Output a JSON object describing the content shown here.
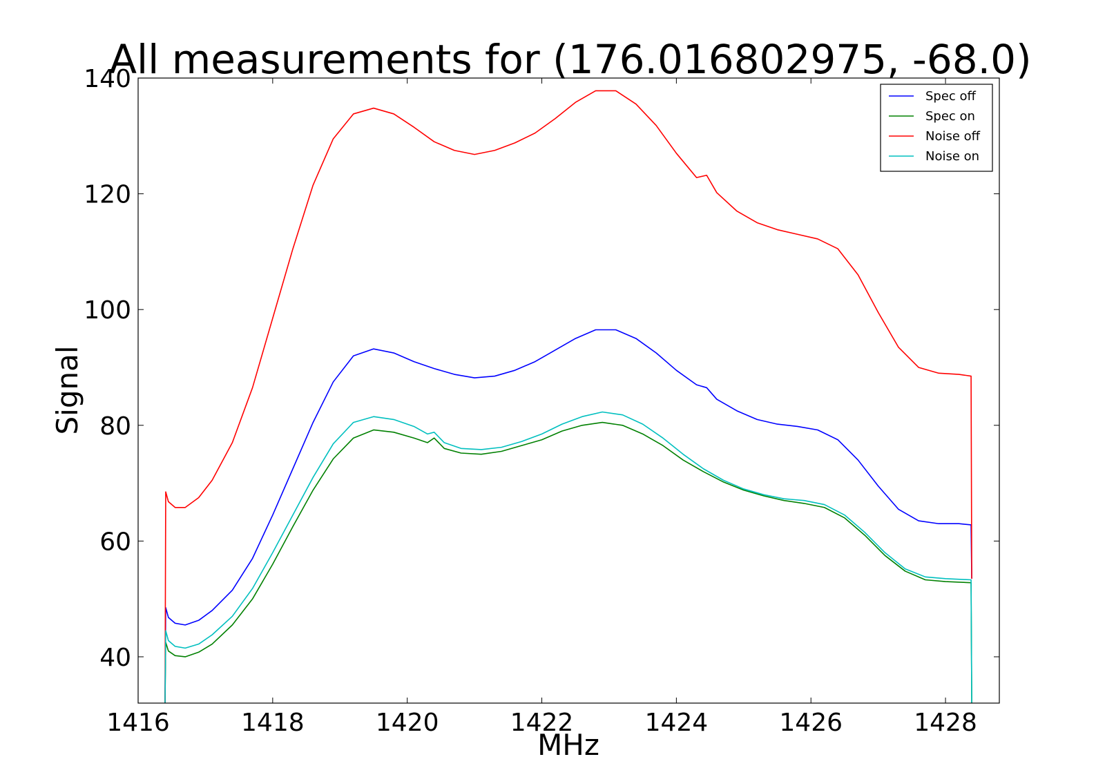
{
  "chart_data": {
    "type": "line",
    "title": "All measurements for (176.016802975, -68.0)",
    "xlabel": "MHz",
    "ylabel": "Signal",
    "xlim": [
      1416.0,
      1428.8
    ],
    "ylim": [
      32,
      140
    ],
    "xticks": [
      1416,
      1418,
      1420,
      1422,
      1424,
      1426,
      1428
    ],
    "yticks": [
      40,
      60,
      80,
      100,
      120,
      140
    ],
    "grid": false,
    "legend_position": "top-right",
    "series": [
      {
        "name": "Spec off",
        "color": "#0000ff",
        "points": [
          [
            1416.4,
            32
          ],
          [
            1416.41,
            48.5
          ],
          [
            1416.45,
            46.8
          ],
          [
            1416.55,
            45.8
          ],
          [
            1416.7,
            45.5
          ],
          [
            1416.9,
            46.3
          ],
          [
            1417.1,
            48.0
          ],
          [
            1417.4,
            51.5
          ],
          [
            1417.7,
            57.0
          ],
          [
            1418.0,
            64.5
          ],
          [
            1418.3,
            72.5
          ],
          [
            1418.6,
            80.5
          ],
          [
            1418.9,
            87.5
          ],
          [
            1419.2,
            92.0
          ],
          [
            1419.5,
            93.2
          ],
          [
            1419.8,
            92.5
          ],
          [
            1420.1,
            91.0
          ],
          [
            1420.4,
            89.8
          ],
          [
            1420.7,
            88.8
          ],
          [
            1421.0,
            88.2
          ],
          [
            1421.3,
            88.5
          ],
          [
            1421.6,
            89.5
          ],
          [
            1421.9,
            91.0
          ],
          [
            1422.2,
            93.0
          ],
          [
            1422.5,
            95.0
          ],
          [
            1422.8,
            96.5
          ],
          [
            1423.1,
            96.5
          ],
          [
            1423.4,
            95.0
          ],
          [
            1423.7,
            92.5
          ],
          [
            1424.0,
            89.5
          ],
          [
            1424.3,
            87.0
          ],
          [
            1424.45,
            86.5
          ],
          [
            1424.6,
            84.5
          ],
          [
            1424.9,
            82.5
          ],
          [
            1425.2,
            81.0
          ],
          [
            1425.5,
            80.2
          ],
          [
            1425.8,
            79.8
          ],
          [
            1426.1,
            79.2
          ],
          [
            1426.4,
            77.5
          ],
          [
            1426.7,
            74.0
          ],
          [
            1427.0,
            69.5
          ],
          [
            1427.3,
            65.5
          ],
          [
            1427.6,
            63.5
          ],
          [
            1427.9,
            63.0
          ],
          [
            1428.2,
            63.0
          ],
          [
            1428.38,
            62.8
          ],
          [
            1428.39,
            53.5
          ]
        ]
      },
      {
        "name": "Spec on",
        "color": "#008000",
        "points": [
          [
            1416.4,
            32
          ],
          [
            1416.41,
            42.5
          ],
          [
            1416.45,
            41.0
          ],
          [
            1416.55,
            40.2
          ],
          [
            1416.7,
            40.0
          ],
          [
            1416.9,
            40.8
          ],
          [
            1417.1,
            42.2
          ],
          [
            1417.4,
            45.5
          ],
          [
            1417.7,
            50.0
          ],
          [
            1418.0,
            56.0
          ],
          [
            1418.3,
            62.5
          ],
          [
            1418.6,
            68.8
          ],
          [
            1418.9,
            74.2
          ],
          [
            1419.2,
            77.8
          ],
          [
            1419.5,
            79.2
          ],
          [
            1419.8,
            78.8
          ],
          [
            1420.1,
            77.8
          ],
          [
            1420.3,
            77.0
          ],
          [
            1420.4,
            77.8
          ],
          [
            1420.55,
            76.0
          ],
          [
            1420.8,
            75.2
          ],
          [
            1421.1,
            75.0
          ],
          [
            1421.4,
            75.5
          ],
          [
            1421.7,
            76.5
          ],
          [
            1422.0,
            77.5
          ],
          [
            1422.3,
            79.0
          ],
          [
            1422.6,
            80.0
          ],
          [
            1422.9,
            80.5
          ],
          [
            1423.2,
            80.0
          ],
          [
            1423.5,
            78.5
          ],
          [
            1423.8,
            76.5
          ],
          [
            1424.1,
            74.0
          ],
          [
            1424.4,
            72.0
          ],
          [
            1424.7,
            70.2
          ],
          [
            1425.0,
            68.8
          ],
          [
            1425.3,
            67.8
          ],
          [
            1425.6,
            67.0
          ],
          [
            1425.9,
            66.5
          ],
          [
            1426.2,
            65.8
          ],
          [
            1426.5,
            64.0
          ],
          [
            1426.8,
            61.0
          ],
          [
            1427.1,
            57.5
          ],
          [
            1427.4,
            54.8
          ],
          [
            1427.7,
            53.3
          ],
          [
            1428.0,
            53.0
          ],
          [
            1428.38,
            52.8
          ],
          [
            1428.39,
            32
          ]
        ]
      },
      {
        "name": "Noise off",
        "color": "#ff0000",
        "points": [
          [
            1416.4,
            32
          ],
          [
            1416.41,
            68.5
          ],
          [
            1416.45,
            66.8
          ],
          [
            1416.55,
            65.8
          ],
          [
            1416.7,
            65.8
          ],
          [
            1416.9,
            67.5
          ],
          [
            1417.1,
            70.5
          ],
          [
            1417.4,
            77.0
          ],
          [
            1417.7,
            86.5
          ],
          [
            1418.0,
            98.5
          ],
          [
            1418.3,
            110.5
          ],
          [
            1418.6,
            121.5
          ],
          [
            1418.9,
            129.5
          ],
          [
            1419.2,
            133.8
          ],
          [
            1419.5,
            134.8
          ],
          [
            1419.8,
            133.8
          ],
          [
            1420.1,
            131.5
          ],
          [
            1420.4,
            129.0
          ],
          [
            1420.7,
            127.5
          ],
          [
            1421.0,
            126.8
          ],
          [
            1421.3,
            127.5
          ],
          [
            1421.6,
            128.8
          ],
          [
            1421.9,
            130.5
          ],
          [
            1422.2,
            133.0
          ],
          [
            1422.5,
            135.8
          ],
          [
            1422.8,
            137.8
          ],
          [
            1423.1,
            137.8
          ],
          [
            1423.4,
            135.5
          ],
          [
            1423.7,
            131.8
          ],
          [
            1424.0,
            127.0
          ],
          [
            1424.3,
            122.8
          ],
          [
            1424.45,
            123.2
          ],
          [
            1424.6,
            120.2
          ],
          [
            1424.9,
            117.0
          ],
          [
            1425.2,
            115.0
          ],
          [
            1425.5,
            113.8
          ],
          [
            1425.8,
            113.0
          ],
          [
            1426.1,
            112.2
          ],
          [
            1426.4,
            110.5
          ],
          [
            1426.7,
            106.0
          ],
          [
            1427.0,
            99.5
          ],
          [
            1427.3,
            93.5
          ],
          [
            1427.6,
            90.0
          ],
          [
            1427.9,
            89.0
          ],
          [
            1428.2,
            88.8
          ],
          [
            1428.38,
            88.5
          ],
          [
            1428.39,
            53.5
          ]
        ]
      },
      {
        "name": "Noise on",
        "color": "#00bfbf",
        "points": [
          [
            1416.4,
            32
          ],
          [
            1416.41,
            44.5
          ],
          [
            1416.45,
            42.8
          ],
          [
            1416.55,
            41.8
          ],
          [
            1416.7,
            41.5
          ],
          [
            1416.9,
            42.2
          ],
          [
            1417.1,
            43.8
          ],
          [
            1417.4,
            47.0
          ],
          [
            1417.7,
            51.8
          ],
          [
            1418.0,
            58.0
          ],
          [
            1418.3,
            64.5
          ],
          [
            1418.6,
            71.0
          ],
          [
            1418.9,
            76.8
          ],
          [
            1419.2,
            80.5
          ],
          [
            1419.5,
            81.5
          ],
          [
            1419.8,
            81.0
          ],
          [
            1420.1,
            79.8
          ],
          [
            1420.3,
            78.5
          ],
          [
            1420.4,
            78.8
          ],
          [
            1420.55,
            77.0
          ],
          [
            1420.8,
            76.0
          ],
          [
            1421.1,
            75.8
          ],
          [
            1421.4,
            76.2
          ],
          [
            1421.7,
            77.2
          ],
          [
            1422.0,
            78.5
          ],
          [
            1422.3,
            80.2
          ],
          [
            1422.6,
            81.5
          ],
          [
            1422.9,
            82.3
          ],
          [
            1423.2,
            81.8
          ],
          [
            1423.5,
            80.2
          ],
          [
            1423.8,
            77.8
          ],
          [
            1424.1,
            75.0
          ],
          [
            1424.4,
            72.5
          ],
          [
            1424.7,
            70.5
          ],
          [
            1425.0,
            69.0
          ],
          [
            1425.3,
            68.0
          ],
          [
            1425.6,
            67.3
          ],
          [
            1425.9,
            67.0
          ],
          [
            1426.2,
            66.3
          ],
          [
            1426.5,
            64.5
          ],
          [
            1426.8,
            61.5
          ],
          [
            1427.1,
            58.0
          ],
          [
            1427.4,
            55.2
          ],
          [
            1427.7,
            53.8
          ],
          [
            1428.0,
            53.5
          ],
          [
            1428.38,
            53.3
          ],
          [
            1428.39,
            32
          ]
        ]
      }
    ]
  }
}
